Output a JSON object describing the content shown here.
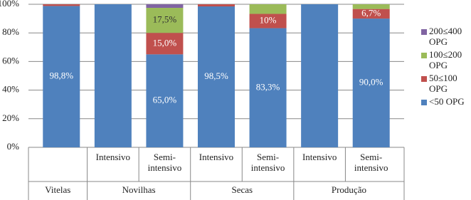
{
  "chart_data": {
    "type": "stacked_bar",
    "groups": [
      {
        "name": "Vitelas",
        "categories": [
          null
        ]
      },
      {
        "name": "Novilhas",
        "categories": [
          "Intensivo",
          "Semi-intensivo"
        ]
      },
      {
        "name": "Secas",
        "categories": [
          "Intensivo",
          "Semi-intensivo"
        ]
      },
      {
        "name": "Produção",
        "categories": [
          "Intensivo",
          "Semi-intensivo"
        ]
      }
    ],
    "series": [
      {
        "name": "<50 OPG",
        "color": "#4f81bd",
        "values": [
          98.8,
          100,
          65.0,
          98.5,
          83.3,
          100,
          90.0
        ],
        "value_labels": [
          "98,8%",
          null,
          "65,0%",
          "98,5%",
          "83,3%",
          null,
          "90,0%"
        ]
      },
      {
        "name": "50≤100 OPG",
        "color": "#c0504d",
        "values": [
          1.2,
          0,
          15.0,
          1.5,
          10,
          0,
          6.7
        ],
        "value_labels": [
          null,
          null,
          "15,0%",
          null,
          "10%",
          null,
          "6,7%"
        ]
      },
      {
        "name": "100≤200 OPG",
        "color": "#9bbb59",
        "values": [
          0,
          0,
          17.5,
          0,
          6.7,
          0,
          3.3
        ],
        "value_labels": [
          null,
          null,
          "17,5%",
          null,
          null,
          null,
          null
        ]
      },
      {
        "name": "200≤400 OPG",
        "color": "#8064a2",
        "values": [
          0,
          0,
          2.5,
          0,
          0,
          0,
          0
        ],
        "value_labels": [
          null,
          null,
          null,
          null,
          null,
          null,
          null
        ]
      }
    ],
    "ylim": [
      0,
      100
    ],
    "yticks": [
      {
        "value": 0,
        "label": "0%"
      },
      {
        "value": 20,
        "label": "20%"
      },
      {
        "value": 40,
        "label": "40%"
      },
      {
        "value": 60,
        "label": "60%"
      },
      {
        "value": 80,
        "label": "80%"
      },
      {
        "value": 100,
        "label": "100%"
      }
    ],
    "grid": true
  }
}
